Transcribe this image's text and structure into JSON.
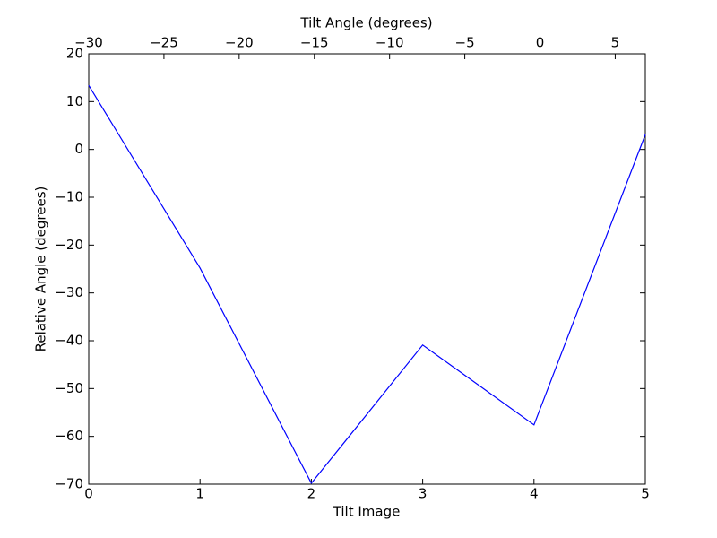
{
  "chart_data": {
    "type": "line",
    "xlabel": "Tilt Image",
    "ylabel": "Relative Angle (degrees)",
    "x2label": "Tilt Angle (degrees)",
    "x": [
      0,
      1,
      2,
      3,
      4,
      5
    ],
    "values": [
      13.4,
      -24.8,
      -69.8,
      -40.9,
      -57.6,
      3.1
    ],
    "color": "#0000ff",
    "xlim": [
      0,
      5
    ],
    "xticks": [
      0,
      1,
      2,
      3,
      4,
      5
    ],
    "x2lim": [
      -30,
      7
    ],
    "x2ticks": [
      {
        "value": -30,
        "label": "−30"
      },
      {
        "value": -25,
        "label": "−25"
      },
      {
        "value": -20,
        "label": "−20"
      },
      {
        "value": -15,
        "label": "−15"
      },
      {
        "value": -10,
        "label": "−10"
      },
      {
        "value": -5,
        "label": "−5"
      },
      0,
      5
    ],
    "ylim": [
      -70,
      20
    ],
    "yticks": [
      {
        "value": -70,
        "label": "−70"
      },
      {
        "value": -60,
        "label": "−60"
      },
      {
        "value": -50,
        "label": "−50"
      },
      {
        "value": -40,
        "label": "−40"
      },
      {
        "value": -30,
        "label": "−30"
      },
      {
        "value": -20,
        "label": "−20"
      },
      {
        "value": -10,
        "label": "−10"
      },
      0,
      10,
      20
    ],
    "grid": false
  }
}
